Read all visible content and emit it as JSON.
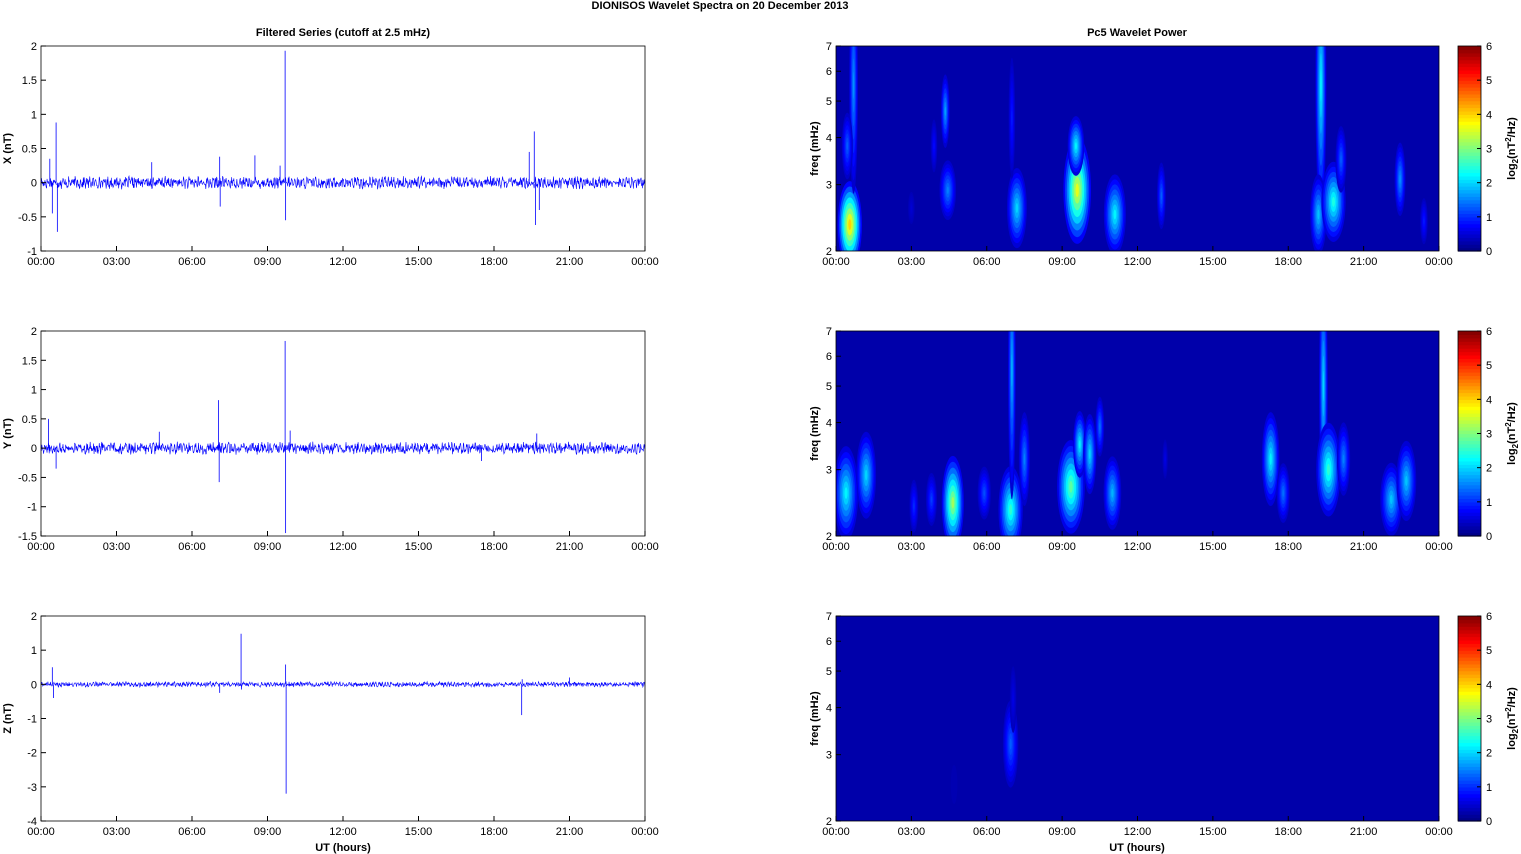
{
  "figure": {
    "title": "DIONISOS Wavelet Spectra on 20 December  2013",
    "left_column_title": "Filtered Series (cutoff at 2.5 mHz)",
    "right_column_title": "Pc5 Wavelet Power",
    "xlabel": "UT (hours)",
    "time_ticks": [
      "00:00",
      "03:00",
      "06:00",
      "09:00",
      "12:00",
      "15:00",
      "18:00",
      "21:00",
      "00:00"
    ]
  },
  "colors": {
    "series_line": "#0000ff",
    "spectrogram_background": "#00008f",
    "colormap": "jet"
  },
  "chart_data": [
    {
      "type": "line",
      "id": "x_series",
      "ylabel": "X (nT)",
      "x_range_hours": [
        0,
        24
      ],
      "ylim": [
        -1,
        2
      ],
      "yticks": [
        -1,
        -0.5,
        0,
        0.5,
        1,
        1.5,
        2
      ],
      "noise_amplitude": 0.07,
      "spikes": [
        {
          "t": 0.6,
          "y": 0.88
        },
        {
          "t": 0.65,
          "y": -0.72
        },
        {
          "t": 0.35,
          "y": 0.35
        },
        {
          "t": 0.45,
          "y": -0.45
        },
        {
          "t": 4.4,
          "y": 0.3
        },
        {
          "t": 7.1,
          "y": 0.38
        },
        {
          "t": 7.12,
          "y": -0.35
        },
        {
          "t": 8.5,
          "y": 0.4
        },
        {
          "t": 9.7,
          "y": 1.93
        },
        {
          "t": 9.72,
          "y": -0.55
        },
        {
          "t": 9.5,
          "y": 0.25
        },
        {
          "t": 19.6,
          "y": 0.75
        },
        {
          "t": 19.65,
          "y": -0.62
        },
        {
          "t": 19.4,
          "y": 0.45
        },
        {
          "t": 19.8,
          "y": -0.4
        }
      ]
    },
    {
      "type": "line",
      "id": "y_series",
      "ylabel": "Y (nT)",
      "x_range_hours": [
        0,
        24
      ],
      "ylim": [
        -1.5,
        2
      ],
      "yticks": [
        -1.5,
        -1,
        -0.5,
        0,
        0.5,
        1,
        1.5,
        2
      ],
      "noise_amplitude": 0.08,
      "spikes": [
        {
          "t": 0.3,
          "y": 0.5
        },
        {
          "t": 0.6,
          "y": -0.35
        },
        {
          "t": 7.05,
          "y": 0.82
        },
        {
          "t": 7.08,
          "y": -0.58
        },
        {
          "t": 9.7,
          "y": 1.83
        },
        {
          "t": 9.72,
          "y": -1.45
        },
        {
          "t": 9.9,
          "y": 0.3
        },
        {
          "t": 4.7,
          "y": 0.28
        },
        {
          "t": 19.7,
          "y": 0.25
        },
        {
          "t": 17.5,
          "y": -0.22
        }
      ]
    },
    {
      "type": "line",
      "id": "z_series",
      "ylabel": "Z (nT)",
      "x_range_hours": [
        0,
        24
      ],
      "ylim": [
        -4,
        2
      ],
      "yticks": [
        -4,
        -3,
        -2,
        -1,
        0,
        1,
        2
      ],
      "noise_amplitude": 0.06,
      "spikes": [
        {
          "t": 0.45,
          "y": 0.5
        },
        {
          "t": 0.5,
          "y": -0.4
        },
        {
          "t": 7.1,
          "y": -0.25
        },
        {
          "t": 7.95,
          "y": 1.48
        },
        {
          "t": 7.97,
          "y": -0.15
        },
        {
          "t": 9.72,
          "y": 0.58
        },
        {
          "t": 9.74,
          "y": -3.2
        },
        {
          "t": 19.1,
          "y": -0.9
        },
        {
          "t": 19.12,
          "y": 0.15
        },
        {
          "t": 21.0,
          "y": 0.2
        }
      ]
    },
    {
      "type": "heatmap",
      "id": "x_power",
      "ylabel_main": "freq",
      "ylabel_sub": "(mHz)",
      "y_scale": "log",
      "ylim_mhz": [
        2,
        7
      ],
      "yticks": [
        2,
        3,
        4,
        5,
        6,
        7
      ],
      "x_range_hours": [
        0,
        24
      ],
      "colorbar": {
        "label": "log2(nT2/Hz)",
        "range": [
          0,
          6
        ],
        "ticks": [
          0,
          1,
          2,
          3,
          4,
          5,
          6
        ]
      },
      "blobs": [
        {
          "t": 0.55,
          "f": 2.35,
          "w": 0.22,
          "h": 0.55,
          "p": 4.0
        },
        {
          "t": 0.7,
          "f": 5.5,
          "w": 0.08,
          "h": 1.5,
          "p": 1.6
        },
        {
          "t": 0.45,
          "f": 3.8,
          "w": 0.1,
          "h": 0.4,
          "p": 1.3
        },
        {
          "t": 4.35,
          "f": 4.7,
          "w": 0.08,
          "h": 0.45,
          "p": 1.7
        },
        {
          "t": 4.45,
          "f": 2.9,
          "w": 0.15,
          "h": 0.35,
          "p": 1.5
        },
        {
          "t": 3.9,
          "f": 3.8,
          "w": 0.06,
          "h": 0.3,
          "p": 0.8
        },
        {
          "t": 7.2,
          "f": 2.6,
          "w": 0.18,
          "h": 0.5,
          "p": 2.0
        },
        {
          "t": 7.0,
          "f": 4.5,
          "w": 0.06,
          "h": 0.8,
          "p": 0.9
        },
        {
          "t": 9.6,
          "f": 2.9,
          "w": 0.25,
          "h": 0.7,
          "p": 3.6
        },
        {
          "t": 9.55,
          "f": 3.8,
          "w": 0.15,
          "h": 0.35,
          "p": 2.2
        },
        {
          "t": 11.1,
          "f": 2.5,
          "w": 0.2,
          "h": 0.5,
          "p": 2.2
        },
        {
          "t": 12.95,
          "f": 2.8,
          "w": 0.08,
          "h": 0.4,
          "p": 1.3
        },
        {
          "t": 19.3,
          "f": 5.5,
          "w": 0.1,
          "h": 1.8,
          "p": 2.2
        },
        {
          "t": 19.2,
          "f": 2.5,
          "w": 0.15,
          "h": 0.5,
          "p": 1.9
        },
        {
          "t": 19.8,
          "f": 2.7,
          "w": 0.22,
          "h": 0.5,
          "p": 2.4
        },
        {
          "t": 20.1,
          "f": 3.5,
          "w": 0.1,
          "h": 0.4,
          "p": 1.3
        },
        {
          "t": 22.45,
          "f": 3.1,
          "w": 0.1,
          "h": 0.45,
          "p": 1.6
        },
        {
          "t": 23.4,
          "f": 2.4,
          "w": 0.07,
          "h": 0.25,
          "p": 0.9
        },
        {
          "t": 3.0,
          "f": 2.6,
          "w": 0.06,
          "h": 0.15,
          "p": 0.5
        }
      ]
    },
    {
      "type": "heatmap",
      "id": "y_power",
      "ylabel_main": "freq",
      "ylabel_sub": "(mHz)",
      "y_scale": "log",
      "ylim_mhz": [
        2,
        7
      ],
      "yticks": [
        2,
        3,
        4,
        5,
        6,
        7
      ],
      "x_range_hours": [
        0,
        24
      ],
      "colorbar": {
        "label": "log2(nT2/Hz)",
        "range": [
          0,
          6
        ],
        "ticks": [
          0,
          1,
          2,
          3,
          4,
          5,
          6
        ]
      },
      "blobs": [
        {
          "t": 0.4,
          "f": 2.6,
          "w": 0.22,
          "h": 0.6,
          "p": 2.2
        },
        {
          "t": 1.2,
          "f": 2.9,
          "w": 0.18,
          "h": 0.55,
          "p": 2.0
        },
        {
          "t": 3.1,
          "f": 2.4,
          "w": 0.08,
          "h": 0.3,
          "p": 1.0
        },
        {
          "t": 3.8,
          "f": 2.5,
          "w": 0.1,
          "h": 0.3,
          "p": 1.1
        },
        {
          "t": 4.65,
          "f": 2.45,
          "w": 0.2,
          "h": 0.6,
          "p": 3.2
        },
        {
          "t": 6.95,
          "f": 2.35,
          "w": 0.22,
          "h": 0.55,
          "p": 2.5
        },
        {
          "t": 7.0,
          "f": 5.5,
          "w": 0.07,
          "h": 1.8,
          "p": 1.8
        },
        {
          "t": 7.5,
          "f": 3.2,
          "w": 0.1,
          "h": 0.6,
          "p": 1.5
        },
        {
          "t": 5.9,
          "f": 2.6,
          "w": 0.12,
          "h": 0.3,
          "p": 1.2
        },
        {
          "t": 9.35,
          "f": 2.7,
          "w": 0.25,
          "h": 0.6,
          "p": 2.8
        },
        {
          "t": 9.7,
          "f": 3.5,
          "w": 0.12,
          "h": 0.4,
          "p": 2.2
        },
        {
          "t": 10.1,
          "f": 3.3,
          "w": 0.12,
          "h": 0.5,
          "p": 2.0
        },
        {
          "t": 10.5,
          "f": 3.9,
          "w": 0.08,
          "h": 0.35,
          "p": 1.4
        },
        {
          "t": 11.0,
          "f": 2.6,
          "w": 0.16,
          "h": 0.45,
          "p": 1.8
        },
        {
          "t": 13.1,
          "f": 3.2,
          "w": 0.05,
          "h": 0.2,
          "p": 0.6
        },
        {
          "t": 17.3,
          "f": 3.2,
          "w": 0.16,
          "h": 0.6,
          "p": 2.2
        },
        {
          "t": 17.8,
          "f": 2.6,
          "w": 0.12,
          "h": 0.35,
          "p": 1.4
        },
        {
          "t": 19.4,
          "f": 5.0,
          "w": 0.08,
          "h": 1.7,
          "p": 2.0
        },
        {
          "t": 19.6,
          "f": 3.0,
          "w": 0.22,
          "h": 0.6,
          "p": 2.5
        },
        {
          "t": 20.2,
          "f": 3.2,
          "w": 0.12,
          "h": 0.45,
          "p": 1.5
        },
        {
          "t": 22.1,
          "f": 2.5,
          "w": 0.2,
          "h": 0.45,
          "p": 1.9
        },
        {
          "t": 22.7,
          "f": 2.8,
          "w": 0.18,
          "h": 0.5,
          "p": 1.9
        }
      ]
    },
    {
      "type": "heatmap",
      "id": "z_power",
      "ylabel_main": "freq",
      "ylabel_sub": "(mHz)",
      "y_scale": "log",
      "ylim_mhz": [
        2,
        7
      ],
      "yticks": [
        2,
        3,
        4,
        5,
        6,
        7
      ],
      "x_range_hours": [
        0,
        24
      ],
      "colorbar": {
        "label": "log2(nT2/Hz)",
        "range": [
          0,
          6
        ],
        "ticks": [
          0,
          1,
          2,
          3,
          4,
          5,
          6
        ]
      },
      "blobs": [
        {
          "t": 6.95,
          "f": 3.2,
          "w": 0.14,
          "h": 0.55,
          "p": 1.3
        },
        {
          "t": 7.05,
          "f": 4.2,
          "w": 0.06,
          "h": 0.4,
          "p": 0.6
        },
        {
          "t": 4.7,
          "f": 2.5,
          "w": 0.06,
          "h": 0.2,
          "p": 0.3
        }
      ]
    }
  ]
}
